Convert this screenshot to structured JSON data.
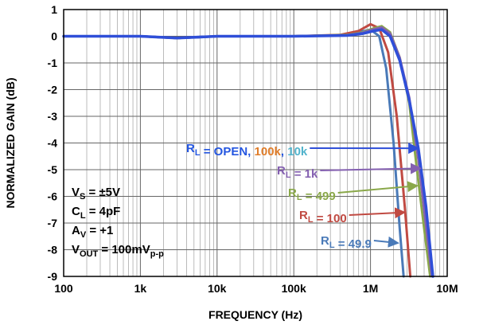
{
  "chart_data": {
    "type": "line",
    "xlabel": "FREQUENCY (Hz)",
    "ylabel": "NORMALIZED GAIN (dB)",
    "x_scale": "log",
    "xlim": [
      100,
      10000000
    ],
    "ylim": [
      -9,
      1
    ],
    "x_ticks": [
      "100",
      "1k",
      "10k",
      "100k",
      "1M",
      "10M"
    ],
    "y_ticks": [
      "1",
      "0",
      "-1",
      "-2",
      "-3",
      "-4",
      "-5",
      "-6",
      "-7",
      "-8",
      "-9"
    ],
    "grid": true,
    "conditions": [
      {
        "sym": "V",
        "sub": "S",
        "rest": " = ±5V"
      },
      {
        "sym": "C",
        "sub": "L",
        "rest": " = 4pF"
      },
      {
        "sym": "A",
        "sub": "V",
        "rest": " = +1"
      },
      {
        "sym": "V",
        "sub": "OUT",
        "rest": " = 100mV",
        "sub2": "p-p"
      }
    ],
    "series": [
      {
        "label_parts": [
          {
            "text": "R",
            "color": "#2456e0"
          },
          {
            "text": "L",
            "color": "#2456e0",
            "sub": true
          },
          {
            "text": " = OPEN, ",
            "color": "#2456e0"
          },
          {
            "text": "100k",
            "color": "#e07d2a"
          },
          {
            "text": ", ",
            "color": "#2456e0"
          },
          {
            "text": "10k",
            "color": "#52b3cc"
          }
        ],
        "color": "#2f4fd8",
        "arrow_target": [
          4200000,
          -4.2
        ],
        "x": [
          100,
          1000,
          3000,
          10000,
          100000,
          500000,
          800000,
          1100000,
          1400000,
          1800000,
          2400000,
          3200000,
          4200000,
          5300000,
          6500000
        ],
        "y": [
          0,
          0,
          -0.07,
          0,
          0,
          0.03,
          0.1,
          0.2,
          0.25,
          0,
          -0.9,
          -2.4,
          -4.2,
          -6.4,
          -9
        ]
      },
      {
        "label_parts": [
          {
            "text": "R",
            "color": "#8460b0"
          },
          {
            "text": "L",
            "color": "#8460b0",
            "sub": true
          },
          {
            "text": " = 1k",
            "color": "#8460b0"
          }
        ],
        "color": "#8460b0",
        "arrow_target": [
          4500000,
          -4.95
        ],
        "x": [
          100,
          1000,
          3000,
          10000,
          100000,
          500000,
          800000,
          1100000,
          1400000,
          1800000,
          2400000,
          3200000,
          4200000,
          5200000,
          6300000
        ],
        "y": [
          0,
          0,
          -0.07,
          0,
          0,
          0.04,
          0.13,
          0.26,
          0.33,
          0.1,
          -0.8,
          -2.3,
          -4.6,
          -6.9,
          -9
        ]
      },
      {
        "label_parts": [
          {
            "text": "R",
            "color": "#8aa84a"
          },
          {
            "text": "L",
            "color": "#8aa84a",
            "sub": true
          },
          {
            "text": " = 499",
            "color": "#8aa84a"
          }
        ],
        "color": "#8aa84a",
        "arrow_target": [
          4100000,
          -5.6
        ],
        "x": [
          100,
          1000,
          3000,
          10000,
          100000,
          500000,
          800000,
          1100000,
          1400000,
          1800000,
          2400000,
          3200000,
          4000000,
          5000000,
          6000000
        ],
        "y": [
          0,
          0,
          -0.07,
          0,
          0,
          0.05,
          0.15,
          0.3,
          0.38,
          0.15,
          -0.8,
          -2.5,
          -4.9,
          -7.2,
          -9
        ]
      },
      {
        "label_parts": [
          {
            "text": "R",
            "color": "#c04a42"
          },
          {
            "text": "L",
            "color": "#c04a42",
            "sub": true
          },
          {
            "text": " = 100",
            "color": "#c04a42"
          }
        ],
        "color": "#c04a42",
        "arrow_target": [
          2800000,
          -6.6
        ],
        "x": [
          100,
          1000,
          3000,
          10000,
          100000,
          400000,
          700000,
          1000000,
          1300000,
          1700000,
          2200000,
          2800000,
          3300000
        ],
        "y": [
          0,
          0,
          -0.07,
          0,
          0,
          0.05,
          0.2,
          0.45,
          0.3,
          -0.6,
          -3.0,
          -6.4,
          -9
        ]
      },
      {
        "label_parts": [
          {
            "text": "R",
            "color": "#4a7ab8"
          },
          {
            "text": "L",
            "color": "#4a7ab8",
            "sub": true
          },
          {
            "text": " = 49.9",
            "color": "#4a7ab8"
          }
        ],
        "color": "#4a7ab8",
        "arrow_target": [
          2300000,
          -7.75
        ],
        "x": [
          100,
          1000,
          3000,
          10000,
          100000,
          400000,
          700000,
          1000000,
          1300000,
          1600000,
          2000000,
          2400000,
          2700000
        ],
        "y": [
          0,
          0,
          -0.07,
          0,
          0,
          0.04,
          0.15,
          0.25,
          0.0,
          -1.2,
          -4.0,
          -7.2,
          -9
        ]
      }
    ]
  }
}
